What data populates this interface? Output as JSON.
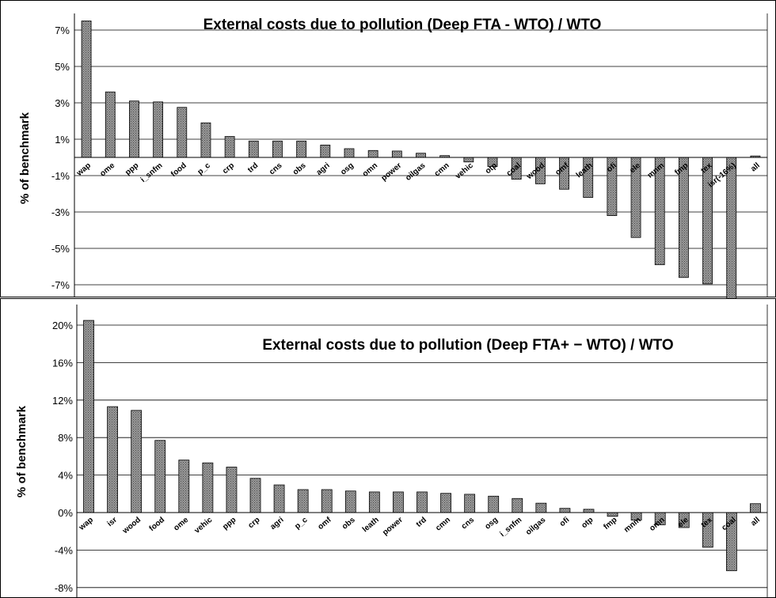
{
  "chart_data": [
    {
      "type": "bar",
      "title": "External costs due to pollution (Deep FTA - WTO) / WTO",
      "ylabel": "% of benchmark",
      "xlabel": "",
      "ylim": [
        -7.8,
        8.1
      ],
      "yticks": [
        7,
        5,
        3,
        1,
        -1,
        -3,
        -5,
        -7
      ],
      "ytick_labels": [
        "7%",
        "5%",
        "3%",
        "1%",
        "-1%",
        "-3%",
        "-5%",
        "-7%"
      ],
      "grid": true,
      "legend": "none",
      "bar_color": "#8c8c8c",
      "categories": [
        "wap",
        "ome",
        "ppp",
        "i_snfm",
        "food",
        "p_c",
        "crp",
        "trd",
        "cns",
        "obs",
        "agri",
        "osg",
        "omn",
        "power",
        "oilgas",
        "cmn",
        "vehic",
        "otp",
        "coal",
        "wood",
        "omf",
        "leath",
        "ofi",
        "ele",
        "mnm",
        "fmp",
        "tex",
        "isr(-16%)",
        "all"
      ],
      "values": [
        7.5,
        3.6,
        3.1,
        3.05,
        2.75,
        1.9,
        1.15,
        0.9,
        0.9,
        0.9,
        0.68,
        0.48,
        0.38,
        0.35,
        0.23,
        0.1,
        -0.25,
        -0.5,
        -1.2,
        -1.45,
        -1.75,
        -2.2,
        -3.2,
        -4.4,
        -5.9,
        -6.6,
        -6.95,
        -7.8,
        0.08
      ],
      "labels_inside_negative_bars": [
        "omf",
        "leath",
        "ofi",
        "ele",
        "mnm",
        "fmp",
        "tex",
        "isr(-16%)"
      ]
    },
    {
      "type": "bar",
      "title": "External costs due to pollution (Deep FTA+ − WTO) / WTO",
      "ylabel": "% of benchmark",
      "xlabel": "",
      "ylim": [
        -8,
        21
      ],
      "yticks": [
        20,
        16,
        12,
        8,
        4,
        0,
        -4,
        -8
      ],
      "ytick_labels": [
        "20%",
        "16%",
        "12%",
        "8%",
        "4%",
        "0%",
        "-4%",
        "-8%"
      ],
      "grid": true,
      "legend": "none",
      "bar_color": "#8c8c8c",
      "categories": [
        "wap",
        "isr",
        "wood",
        "food",
        "ome",
        "vehic",
        "ppp",
        "crp",
        "agri",
        "p_c",
        "omf",
        "obs",
        "leath",
        "power",
        "trd",
        "cmn",
        "cns",
        "osg",
        "i_snfm",
        "oilgas",
        "ofi",
        "otp",
        "fmp",
        "mnm",
        "omn",
        "ele",
        "tex",
        "coal",
        "all"
      ],
      "values": [
        20.5,
        11.3,
        10.9,
        7.7,
        5.6,
        5.3,
        4.85,
        3.65,
        2.95,
        2.45,
        2.45,
        2.3,
        2.2,
        2.2,
        2.2,
        2.05,
        1.95,
        1.75,
        1.5,
        1.0,
        0.45,
        0.35,
        -0.4,
        -0.8,
        -1.3,
        -1.6,
        -3.7,
        -6.2,
        0.95
      ],
      "labels_inside_negative_bars": [
        "tex",
        "coal"
      ]
    }
  ]
}
